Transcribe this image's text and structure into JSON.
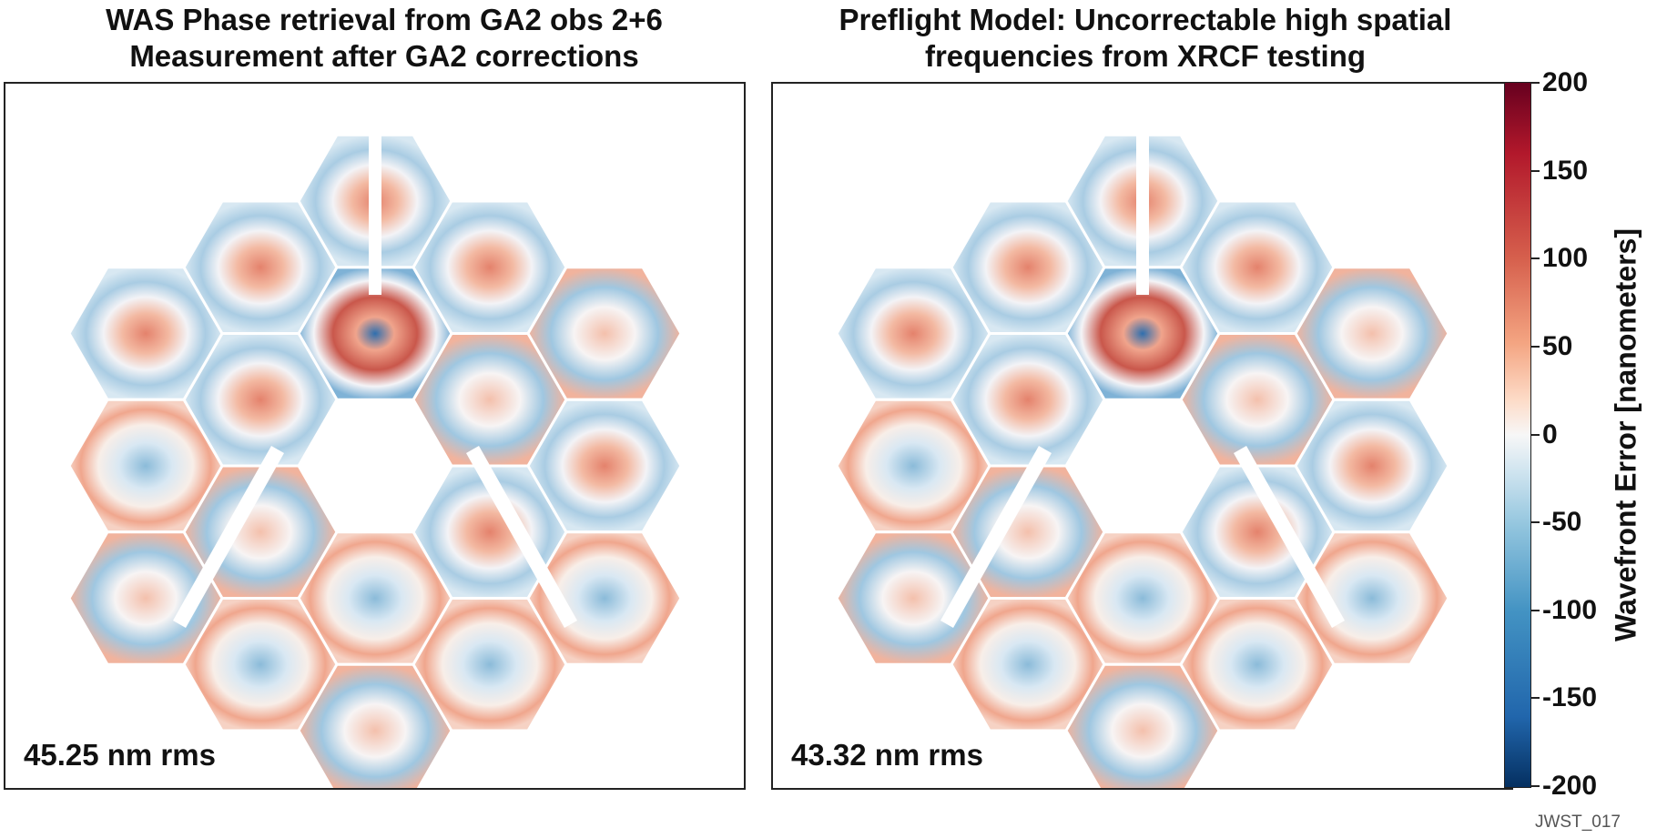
{
  "chart_data": [
    {
      "type": "heatmap",
      "title": [
        "WAS Phase retrieval from GA2 obs 2+6",
        "Measurement after GA2 corrections"
      ],
      "annotation": "45.25 nm rms",
      "segments": 18,
      "colorscale": "RdBu_r",
      "vmin": -200,
      "vmax": 200,
      "xlabel": "",
      "ylabel": ""
    },
    {
      "type": "heatmap",
      "title": [
        "Preflight Model: Uncorrectable high spatial",
        "frequencies from XRCF testing"
      ],
      "annotation": "43.32 nm rms",
      "segments": 18,
      "colorscale": "RdBu_r",
      "vmin": -200,
      "vmax": 200,
      "xlabel": "",
      "ylabel": ""
    }
  ],
  "colorbar": {
    "label": "Wavefront Error [nanometers]",
    "ticks": [
      200,
      150,
      100,
      50,
      0,
      -50,
      -100,
      -150,
      -200
    ],
    "range": [
      -200,
      200
    ],
    "colors": [
      "#67001f",
      "#b2182b",
      "#d6604d",
      "#f4a582",
      "#f7f7f7",
      "#92c5de",
      "#4393c3",
      "#2166ac",
      "#053061"
    ]
  },
  "figure_id": "JWST_017"
}
